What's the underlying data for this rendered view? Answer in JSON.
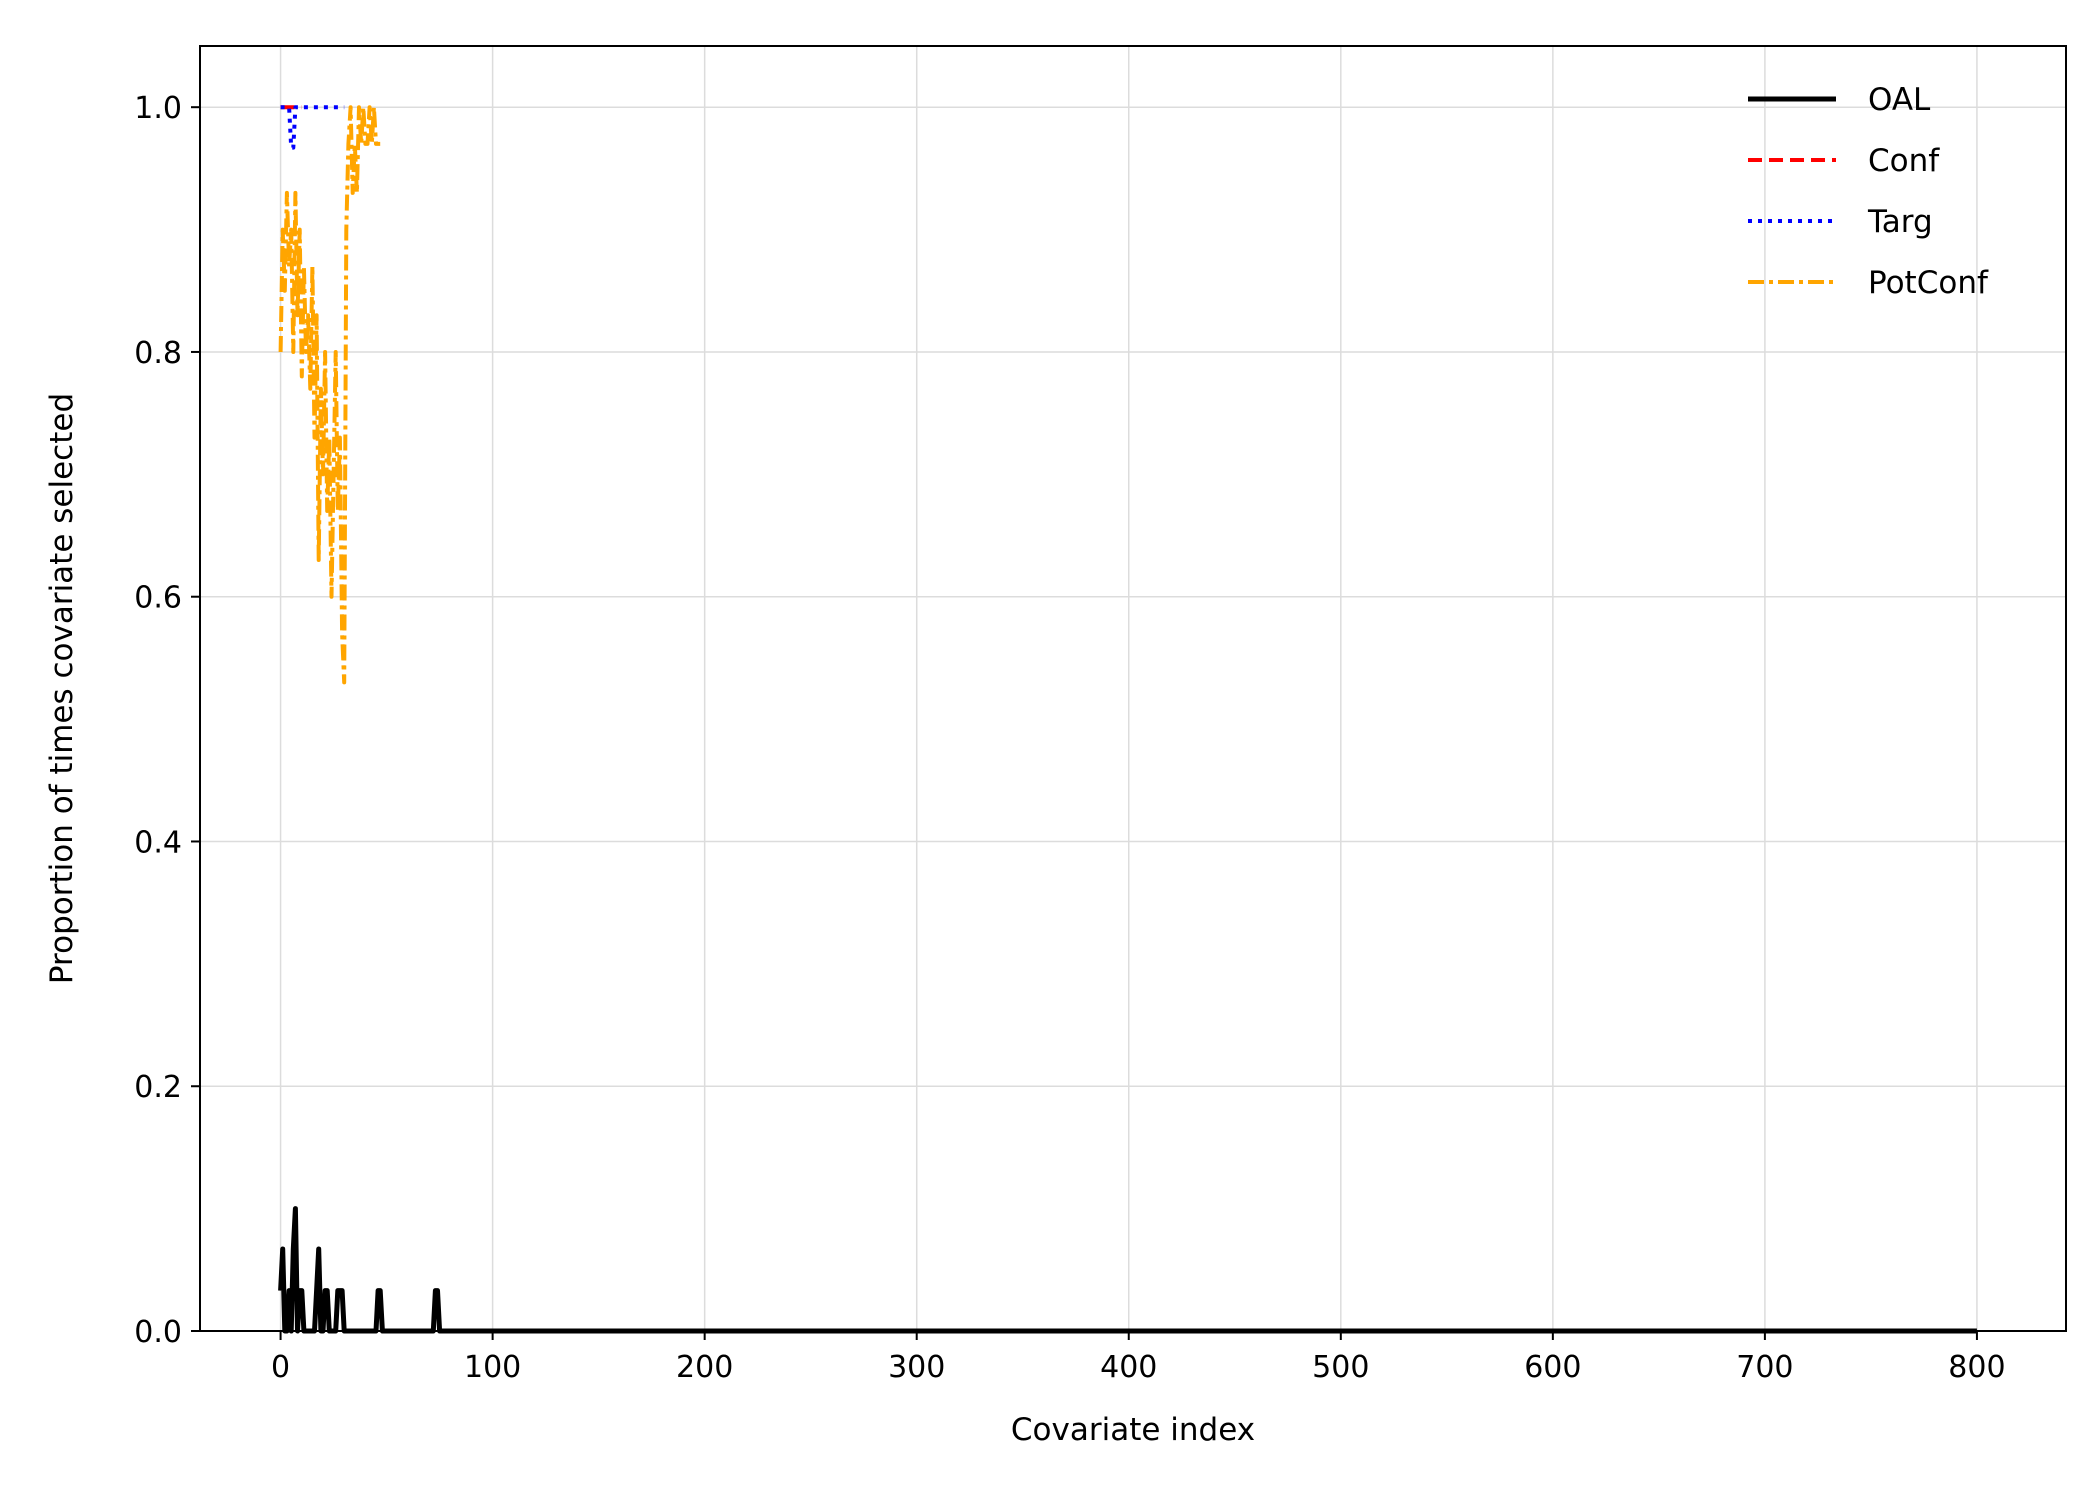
{
  "chart_data": {
    "type": "line",
    "title": "",
    "xlabel": "Covariate index",
    "ylabel": "Proportion of times covariate selected",
    "xlim": [
      -38,
      842
    ],
    "ylim": [
      0,
      1.05
    ],
    "xticks": [
      0,
      100,
      200,
      300,
      400,
      500,
      600,
      700,
      800
    ],
    "yticks": [
      0.0,
      0.2,
      0.4,
      0.6,
      0.8,
      1.0
    ],
    "xtick_labels": [
      "0",
      "100",
      "200",
      "300",
      "400",
      "500",
      "600",
      "700",
      "800"
    ],
    "ytick_labels": [
      "0.0",
      "0.2",
      "0.4",
      "0.6",
      "0.8",
      "1.0"
    ],
    "grid": true,
    "legend_position": "top-right",
    "series": [
      {
        "name": "OAL",
        "color": "#000000",
        "style": "solid",
        "x": [
          0,
          1,
          2,
          3,
          4,
          5,
          6,
          7,
          8,
          9,
          10,
          11,
          12,
          13,
          14,
          15,
          16,
          17,
          18,
          19,
          20,
          21,
          22,
          23,
          24,
          25,
          26,
          27,
          28,
          29,
          30,
          31,
          32,
          40,
          45,
          46,
          47,
          48,
          60,
          72,
          73,
          74,
          75,
          100,
          200,
          300,
          400,
          500,
          600,
          700,
          800
        ],
        "y": [
          0.033,
          0.067,
          0.0,
          0.0,
          0.033,
          0.0,
          0.067,
          0.1,
          0.0,
          0.033,
          0.033,
          0.0,
          0.0,
          0.0,
          0.0,
          0.0,
          0.0,
          0.033,
          0.067,
          0.0,
          0.0,
          0.033,
          0.033,
          0.0,
          0.0,
          0.0,
          0.0,
          0.033,
          0.033,
          0.033,
          0.0,
          0.0,
          0.0,
          0.0,
          0.0,
          0.033,
          0.033,
          0.0,
          0.0,
          0.0,
          0.033,
          0.033,
          0.0,
          0.0,
          0.0,
          0.0,
          0.0,
          0.0,
          0.0,
          0.0,
          0.0
        ]
      },
      {
        "name": "Conf",
        "color": "#ff0000",
        "style": "dashed",
        "x": [
          0,
          1,
          2,
          3,
          4,
          5,
          6,
          7,
          8,
          9,
          10
        ],
        "y": [
          1.0,
          1.0,
          1.0,
          1.0,
          1.0,
          1.0,
          1.0,
          1.0,
          1.0,
          1.0,
          1.0
        ]
      },
      {
        "name": "Targ",
        "color": "#0000ff",
        "style": "dotted",
        "x": [
          0,
          1,
          2,
          3,
          4,
          5,
          6,
          7,
          8,
          9,
          10,
          15,
          20,
          25,
          30
        ],
        "y": [
          1.0,
          1.0,
          1.0,
          1.0,
          1.0,
          0.967,
          0.967,
          1.0,
          1.0,
          1.0,
          1.0,
          1.0,
          1.0,
          1.0,
          1.0
        ]
      },
      {
        "name": "PotConf",
        "color": "#ffa500",
        "style": "dashdot",
        "x": [
          0,
          1,
          2,
          3,
          4,
          5,
          6,
          7,
          8,
          9,
          10,
          11,
          12,
          13,
          14,
          15,
          16,
          17,
          18,
          19,
          20,
          21,
          22,
          23,
          24,
          25,
          26,
          27,
          28,
          29,
          30,
          31,
          32,
          33,
          34,
          35,
          36,
          37,
          38,
          39,
          40,
          41,
          42,
          43,
          44,
          45,
          46,
          47
        ],
        "y": [
          0.8,
          0.9,
          0.85,
          0.93,
          0.87,
          0.9,
          0.8,
          0.93,
          0.83,
          0.9,
          0.78,
          0.87,
          0.8,
          0.83,
          0.77,
          0.87,
          0.73,
          0.83,
          0.63,
          0.77,
          0.7,
          0.8,
          0.67,
          0.73,
          0.6,
          0.7,
          0.8,
          0.67,
          0.73,
          0.57,
          0.53,
          0.9,
          0.97,
          1.0,
          0.93,
          0.97,
          0.93,
          1.0,
          0.97,
          1.0,
          0.97,
          0.97,
          1.0,
          0.97,
          1.0,
          0.97,
          0.97,
          0.97
        ]
      }
    ]
  }
}
